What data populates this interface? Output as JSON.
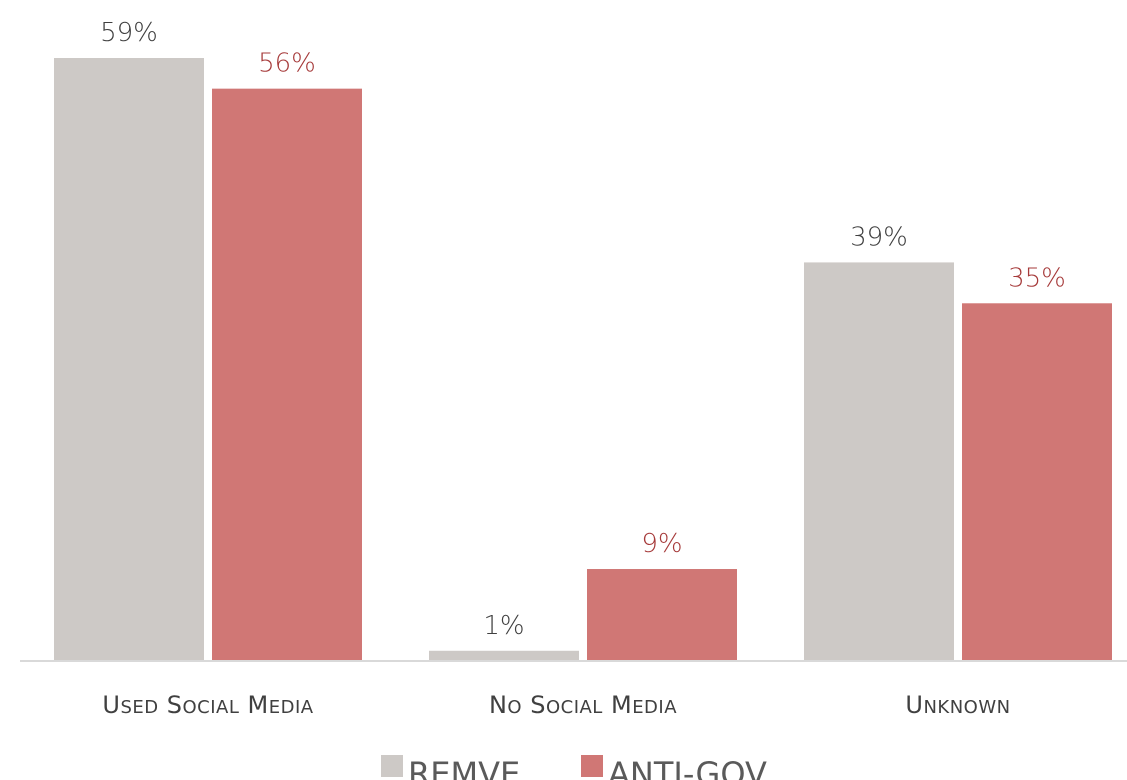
{
  "chart_data": {
    "type": "bar",
    "categories": [
      "Used Social Media",
      "No Social Media",
      "Unknown"
    ],
    "series": [
      {
        "name": "REMVE",
        "values": [
          59,
          1,
          39
        ],
        "labels": [
          "59%",
          "1%",
          "39%"
        ],
        "color": "#cdc9c6",
        "label_color": "#404040"
      },
      {
        "name": "ANTI-GOV",
        "values": [
          56,
          9,
          35
        ],
        "labels": [
          "56%",
          "9%",
          "35%"
        ],
        "color": "#d07775",
        "label_color": "#a63a3a"
      }
    ],
    "ylim": [
      0,
      59
    ],
    "grid": false,
    "legend_position": "bottom"
  }
}
